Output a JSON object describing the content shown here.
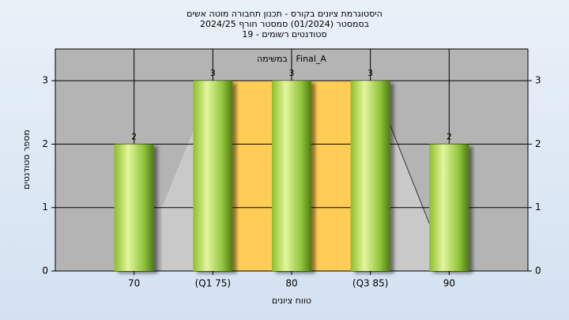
{
  "chart_data": {
    "type": "bar",
    "title": [
      "היסטוגרמת ציונים בקורס - תכנון תחבורה מוטה אשים",
      "בסמסטר  (01/2024)  סמסטר חורף 2024/25",
      "סטודנטים רשומים - 19"
    ],
    "annotation": "במשימה : Final_A",
    "x_label": "טווח ציונים",
    "y_label": "מספר סטודנטים",
    "categories": [
      "70",
      "(Q1 75)",
      "80",
      "(Q3 85)",
      "90"
    ],
    "values": [
      2,
      3,
      3,
      3,
      2
    ],
    "color": "#9fcf3f",
    "ylim": [
      0,
      3.5
    ],
    "yticks": [
      0,
      1,
      2,
      3
    ],
    "grid": true
  }
}
